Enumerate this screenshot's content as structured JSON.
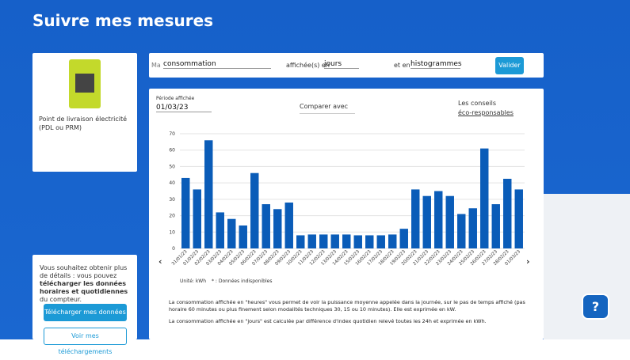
{
  "header": {
    "title": "Suivre mes mesures"
  },
  "meter_card": {
    "label": "Point de livraison électricité (PDL ou PRM)"
  },
  "download_card": {
    "text_before": "Vous souhaitez obtenir plus de détails : vous pouvez ",
    "text_bold": "télécharger les données horaires et quotidiennes",
    "text_after": " du compteur.",
    "button": "Télécharger mes données",
    "link_button": "Voir mes téléchargements"
  },
  "form": {
    "prefix": "Ma",
    "measure": "consommation",
    "shown_in": "affichée(s) en",
    "unit": "jours",
    "and_in": "et en",
    "display": "histogrammes",
    "submit": "Valider"
  },
  "panel": {
    "period_label": "Période affichée",
    "period_value": "01/03/23",
    "compare": "Comparer avec",
    "tips_line1": "Les conseils",
    "tips_line2": "éco-responsables",
    "unit_note": "Unité: kWh",
    "missing_note": "* : Données indisponibles",
    "note1": "La consommation affichée en \"heures\" vous permet de voir la puissance moyenne appelée dans la journée, sur le pas de temps affiché (pas horaire 60 minutes ou plus finement selon modalités techniques 30, 15 ou 10 minutes). Elle est exprimée en kW.",
    "note2": "La consommation affichée en \"jours\" est calculée par différence d'index quotidien relevé toutes les 24h et exprimée en kWh."
  },
  "chart_data": {
    "type": "bar",
    "categories": [
      "31/01/23",
      "01/02/23",
      "02/02/23",
      "03/02/23",
      "04/02/23",
      "05/02/23",
      "06/02/23",
      "07/02/23",
      "08/02/23",
      "09/02/23",
      "10/02/23",
      "11/02/23",
      "12/02/23",
      "13/02/23",
      "14/02/23",
      "15/02/23",
      "16/02/23",
      "17/02/23",
      "18/02/23",
      "19/02/23",
      "20/02/23",
      "21/02/23",
      "22/02/23",
      "23/02/23",
      "24/02/23",
      "25/02/23",
      "26/02/23",
      "27/02/23",
      "28/02/23",
      "01/03/23"
    ],
    "values": [
      43,
      36,
      66,
      22,
      18,
      14,
      46,
      27,
      24,
      28,
      8,
      8.5,
      8.5,
      8.5,
      8.5,
      8,
      8,
      8,
      8.5,
      12,
      36,
      32,
      35,
      32,
      21,
      24.5,
      61,
      27,
      42.5,
      36
    ],
    "color": "#0a5cb8",
    "ylim": [
      0,
      70
    ],
    "yticks": [
      0,
      10,
      20,
      30,
      40,
      50,
      60,
      70
    ],
    "grid": true
  }
}
